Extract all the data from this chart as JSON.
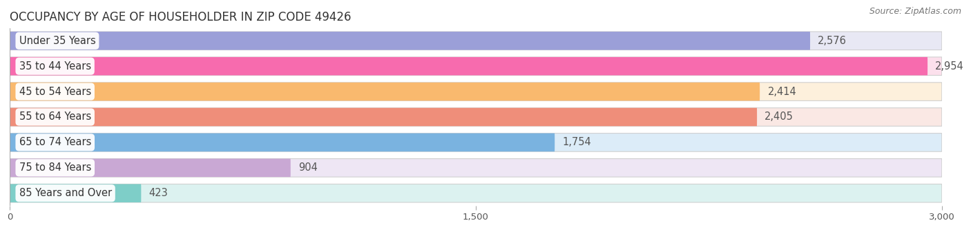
{
  "title": "OCCUPANCY BY AGE OF HOUSEHOLDER IN ZIP CODE 49426",
  "source": "Source: ZipAtlas.com",
  "categories": [
    "Under 35 Years",
    "35 to 44 Years",
    "45 to 54 Years",
    "55 to 64 Years",
    "65 to 74 Years",
    "75 to 84 Years",
    "85 Years and Over"
  ],
  "values": [
    2576,
    2954,
    2414,
    2405,
    1754,
    904,
    423
  ],
  "bar_colors": [
    "#9B9FD8",
    "#F76BAE",
    "#F9B96E",
    "#EF8E7A",
    "#7AB3E0",
    "#C9A8D4",
    "#7ECEC8"
  ],
  "bar_bg_colors": [
    "#E8E8F4",
    "#FCE0EC",
    "#FDF0DC",
    "#FAE8E4",
    "#DCEcF8",
    "#EEE6F4",
    "#DCF2F0"
  ],
  "bar_border_color": "#d0d0d0",
  "xlim": [
    0,
    3000
  ],
  "xticks": [
    0,
    1500,
    3000
  ],
  "background_color": "#ffffff",
  "plot_bg_color": "#ffffff",
  "title_fontsize": 12,
  "label_fontsize": 10.5,
  "value_fontsize": 10.5,
  "source_fontsize": 9
}
